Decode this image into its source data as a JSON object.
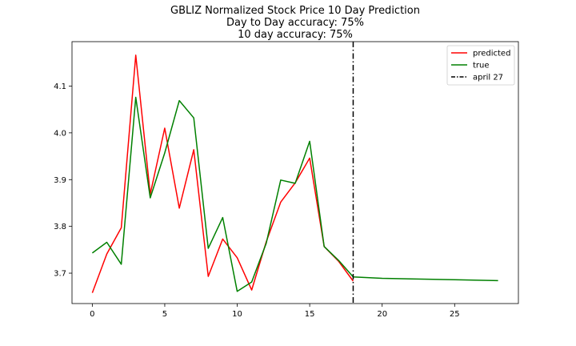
{
  "chart_data": {
    "type": "line",
    "title_lines": [
      "GBLIZ Normalized Stock Price 10 Day Prediction",
      "Day to Day accuracy: 75%",
      "10 day accuracy: 75%"
    ],
    "xlabel": "",
    "ylabel": "",
    "xlim": [
      -1.4,
      29.4
    ],
    "ylim": [
      3.635,
      4.195
    ],
    "xticks": [
      0,
      5,
      10,
      15,
      20,
      25
    ],
    "yticks": [
      3.7,
      3.8,
      3.9,
      4.0,
      4.1
    ],
    "ytick_labels": [
      "3.7",
      "3.8",
      "3.9",
      "4.0",
      "4.1"
    ],
    "legend_position": "top-right",
    "series": [
      {
        "name": "predicted",
        "color": "#ff0000",
        "x": [
          0,
          1,
          2,
          3,
          4,
          5,
          6,
          7,
          8,
          9,
          10,
          11,
          12,
          13,
          14,
          15,
          16,
          17,
          18
        ],
        "y": [
          3.658,
          3.741,
          3.797,
          4.166,
          3.869,
          4.01,
          3.839,
          3.964,
          3.693,
          3.773,
          3.733,
          3.664,
          3.767,
          3.852,
          3.893,
          3.946,
          3.757,
          3.725,
          3.683
        ]
      },
      {
        "name": "true",
        "color": "#008000",
        "x": [
          0,
          1,
          2,
          3,
          4,
          5,
          6,
          7,
          8,
          9,
          10,
          11,
          12,
          13,
          14,
          15,
          16,
          17,
          18,
          20,
          25,
          28
        ],
        "y": [
          3.743,
          3.766,
          3.719,
          4.076,
          3.861,
          3.957,
          4.069,
          4.032,
          3.753,
          3.819,
          3.661,
          3.681,
          3.764,
          3.899,
          3.892,
          3.982,
          3.757,
          3.727,
          3.692,
          3.689,
          3.686,
          3.684
        ]
      }
    ],
    "vline": {
      "name": "april 27",
      "x": 18,
      "color": "#000000",
      "style": "dashdot"
    }
  }
}
